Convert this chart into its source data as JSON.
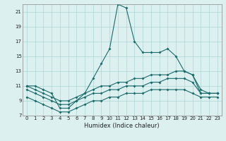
{
  "xlabel": "Humidex (Indice chaleur)",
  "x": [
    0,
    1,
    2,
    3,
    4,
    5,
    6,
    7,
    8,
    9,
    10,
    11,
    12,
    13,
    14,
    15,
    16,
    17,
    18,
    19,
    20,
    21,
    22,
    23
  ],
  "line1": [
    11,
    11,
    10.5,
    10,
    8,
    8,
    9,
    10,
    12,
    14,
    16,
    22,
    21.5,
    17,
    15.5,
    15.5,
    15.5,
    16,
    15,
    13,
    12.5,
    10.5,
    10,
    10
  ],
  "line2": [
    11,
    10.5,
    10,
    9.5,
    9,
    9,
    9.5,
    10,
    10.5,
    11,
    11,
    11.5,
    11.5,
    12,
    12,
    12.5,
    12.5,
    12.5,
    13,
    13,
    12.5,
    10,
    10,
    10
  ],
  "line3": [
    10.5,
    10,
    9.5,
    9,
    8.5,
    8.5,
    9,
    9.5,
    10,
    10,
    10.5,
    10.5,
    11,
    11,
    11,
    11.5,
    11.5,
    12,
    12,
    12,
    11.5,
    10,
    10,
    10
  ],
  "line4": [
    9.5,
    9,
    8.5,
    8,
    7.5,
    7.5,
    8,
    8.5,
    9,
    9,
    9.5,
    9.5,
    10,
    10,
    10,
    10.5,
    10.5,
    10.5,
    10.5,
    10.5,
    10,
    9.5,
    9.5,
    9.5
  ],
  "bg_color": "#ddf0f0",
  "grid_color": "#aad4d4",
  "line_color": "#1a6b6b",
  "ylim": [
    7,
    22
  ],
  "yticks": [
    7,
    9,
    11,
    13,
    15,
    17,
    19,
    21
  ],
  "xticks": [
    0,
    1,
    2,
    3,
    4,
    5,
    6,
    7,
    8,
    9,
    10,
    11,
    12,
    13,
    14,
    15,
    16,
    17,
    18,
    19,
    20,
    21,
    22,
    23
  ],
  "marker_size": 2.0,
  "linewidth": 0.8,
  "tick_fontsize": 5.0,
  "xlabel_fontsize": 6.0
}
